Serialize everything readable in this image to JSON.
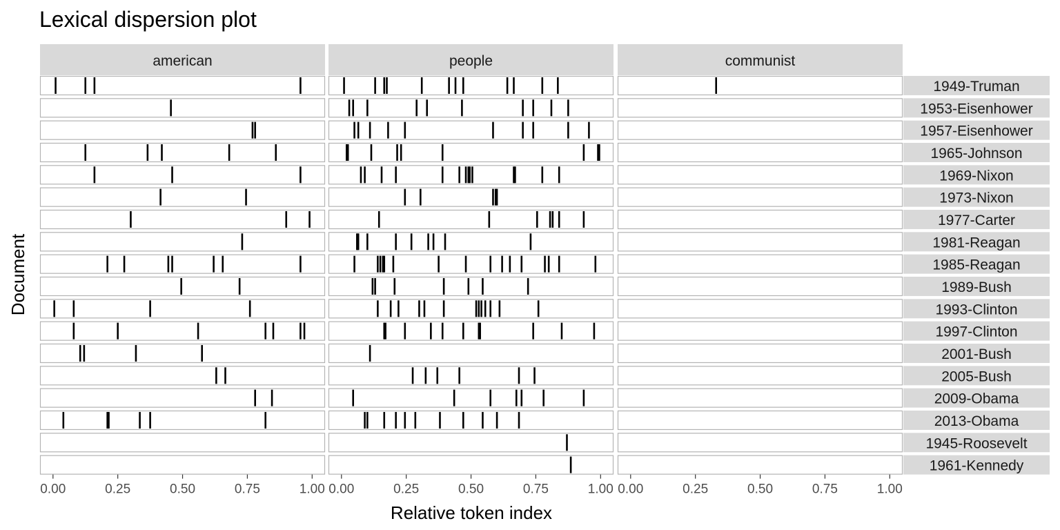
{
  "chart_data": {
    "type": "lexical-dispersion",
    "title": "Lexical dispersion plot",
    "xlabel": "Relative token index",
    "ylabel": "Document",
    "xlim": [
      0,
      1
    ],
    "x_ticks": [
      "0.00",
      "0.25",
      "0.50",
      "0.75",
      "1.00"
    ],
    "x_tick_values": [
      0,
      0.25,
      0.5,
      0.75,
      1
    ],
    "facets": [
      "american",
      "people",
      "communist"
    ],
    "documents": [
      "1949-Truman",
      "1953-Eisenhower",
      "1957-Eisenhower",
      "1965-Johnson",
      "1969-Nixon",
      "1973-Nixon",
      "1977-Carter",
      "1981-Reagan",
      "1985-Reagan",
      "1989-Bush",
      "1993-Clinton",
      "1997-Clinton",
      "2001-Bush",
      "2005-Bush",
      "2009-Obama",
      "2013-Obama",
      "1945-Roosevelt",
      "1961-Kennedy"
    ],
    "occurrences": {
      "american": [
        [
          0.01,
          0.125,
          0.16,
          0.955
        ],
        [
          0.455
        ],
        [
          0.77,
          0.78
        ],
        [
          0.125,
          0.365,
          0.42,
          0.68,
          0.86
        ],
        [
          0.16,
          0.46,
          0.955
        ],
        [
          0.415,
          0.745
        ],
        [
          0.3,
          0.9,
          0.99
        ],
        [
          0.73
        ],
        [
          0.21,
          0.275,
          0.445,
          0.46,
          0.62,
          0.655,
          0.955
        ],
        [
          0.495,
          0.72
        ],
        [
          0.005,
          0.08,
          0.375,
          0.76
        ],
        [
          0.08,
          0.25,
          0.56,
          0.82,
          0.85,
          0.955,
          0.97
        ],
        [
          0.105,
          0.12,
          0.32,
          0.575
        ],
        [
          0.63,
          0.665
        ],
        [
          0.78,
          0.845
        ],
        [
          0.04,
          0.21,
          0.215,
          0.335,
          0.375,
          0.82
        ],
        [],
        []
      ],
      "people": [
        [
          0.01,
          0.13,
          0.165,
          0.175,
          0.31,
          0.415,
          0.44,
          0.47,
          0.64,
          0.665,
          0.775,
          0.835
        ],
        [
          0.03,
          0.045,
          0.1,
          0.29,
          0.33,
          0.465,
          0.7,
          0.74,
          0.81,
          0.875
        ],
        [
          0.05,
          0.065,
          0.11,
          0.18,
          0.245,
          0.585,
          0.7,
          0.74,
          0.875,
          0.955
        ],
        [
          0.02,
          0.025,
          0.115,
          0.215,
          0.23,
          0.39,
          0.935,
          0.99,
          0.995
        ],
        [
          0.075,
          0.09,
          0.155,
          0.21,
          0.39,
          0.455,
          0.48,
          0.49,
          0.495,
          0.505,
          0.665,
          0.67,
          0.775,
          0.84
        ],
        [
          0.245,
          0.305,
          0.585,
          0.595,
          0.6
        ],
        [
          0.145,
          0.57,
          0.755,
          0.805,
          0.815,
          0.84,
          0.935
        ],
        [
          0.06,
          0.065,
          0.1,
          0.21,
          0.27,
          0.335,
          0.355,
          0.4,
          0.73
        ],
        [
          0.05,
          0.14,
          0.15,
          0.16,
          0.165,
          0.2,
          0.375,
          0.48,
          0.575,
          0.62,
          0.65,
          0.695,
          0.785,
          0.8,
          0.84,
          0.98
        ],
        [
          0.12,
          0.13,
          0.205,
          0.395,
          0.49,
          0.545,
          0.72
        ],
        [
          0.14,
          0.19,
          0.22,
          0.3,
          0.32,
          0.395,
          0.52,
          0.53,
          0.54,
          0.555,
          0.575,
          0.61,
          0.76
        ],
        [
          0.165,
          0.17,
          0.245,
          0.345,
          0.39,
          0.47,
          0.53,
          0.535,
          0.74,
          0.85,
          0.975
        ],
        [
          0.11
        ],
        [
          0.275,
          0.325,
          0.37,
          0.455,
          0.685,
          0.745
        ],
        [
          0.045,
          0.435,
          0.575,
          0.675,
          0.695,
          0.78,
          0.935
        ],
        [
          0.09,
          0.1,
          0.165,
          0.21,
          0.245,
          0.285,
          0.38,
          0.47,
          0.545,
          0.6,
          0.685
        ],
        [
          0.87
        ],
        [
          0.885
        ]
      ],
      "communist": [
        [
          0.33
        ],
        [],
        [],
        [],
        [],
        [],
        [],
        [],
        [],
        [],
        [],
        [],
        [],
        [],
        [],
        [],
        [],
        []
      ]
    }
  }
}
